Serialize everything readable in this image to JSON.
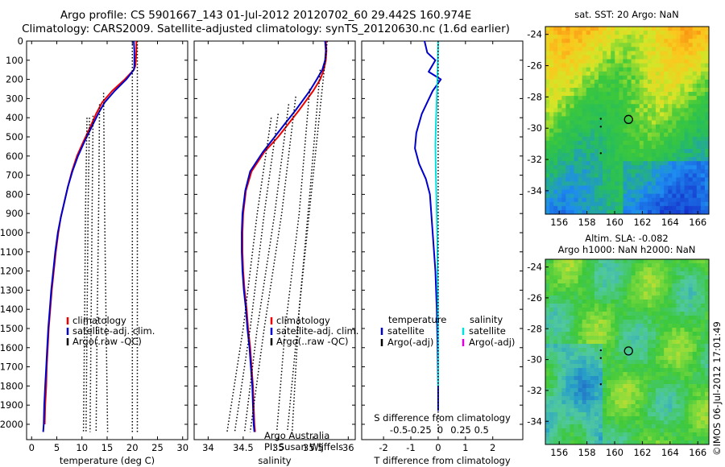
{
  "header": {
    "title_line1": "Argo profile: CS 5901667_143 01-Jul-2012 20120702_60 29.442S 160.974E",
    "title_line2": "Climatology: CARS2009. Satellite-adjusted climatology: synTS_20120630.nc (1.6d earlier)"
  },
  "colors": {
    "climatology": "#ee0000",
    "satellite": "#0000cc",
    "argo": "#000000",
    "salinity_satellite": "#00e0e0",
    "salinity_argo": "#dd00dd"
  },
  "chart_data": [
    {
      "type": "line",
      "name": "temperature-profile",
      "xlabel": "temperature (deg C)",
      "xlim": [
        -1,
        31
      ],
      "ylim": [
        2080,
        0
      ],
      "xticks": [
        "0",
        "5",
        "10",
        "15",
        "20",
        "25",
        "30"
      ],
      "xtick_values": [
        0,
        5,
        10,
        15,
        20,
        25,
        30
      ],
      "yticks": [
        "0",
        "100",
        "200",
        "300",
        "400",
        "500",
        "600",
        "700",
        "800",
        "900",
        "1000",
        "1100",
        "1200",
        "1300",
        "1400",
        "1500",
        "1600",
        "1700",
        "1800",
        "1900",
        "2000"
      ],
      "ytick_values": [
        0,
        100,
        200,
        300,
        400,
        500,
        600,
        700,
        800,
        900,
        1000,
        1100,
        1200,
        1300,
        1400,
        1500,
        1600,
        1700,
        1800,
        1900,
        2000
      ],
      "legend": [
        "climatology",
        "satellite-adj. clim.",
        "Argo(.raw -QC)"
      ],
      "series": [
        {
          "name": "climatology",
          "color": "#ee0000",
          "x": [
            20.8,
            20.8,
            20.7,
            20.6,
            20.3,
            18.5,
            16.0,
            14.0,
            12.8,
            11.6,
            10.2,
            9.0,
            8.0,
            7.2,
            6.5,
            5.8,
            5.3,
            4.8,
            4.4,
            4.0,
            3.7,
            3.4,
            3.2,
            3.0,
            2.9,
            2.7,
            2.6
          ],
          "y": [
            0,
            50,
            100,
            130,
            150,
            200,
            260,
            320,
            380,
            450,
            530,
            600,
            680,
            760,
            840,
            920,
            1000,
            1100,
            1200,
            1300,
            1400,
            1500,
            1600,
            1700,
            1800,
            1900,
            2000
          ]
        },
        {
          "name": "satellite-adj. clim.",
          "color": "#0000cc",
          "x": [
            20.3,
            20.4,
            20.4,
            20.4,
            20.3,
            18.8,
            16.5,
            14.5,
            13.2,
            11.9,
            10.4,
            9.2,
            8.1,
            7.2,
            6.5,
            5.8,
            5.2,
            4.7,
            4.3,
            3.9,
            3.6,
            3.3,
            3.1,
            2.9,
            2.7,
            2.5,
            2.4,
            2.3
          ],
          "y": [
            0,
            50,
            100,
            130,
            150,
            200,
            260,
            320,
            380,
            450,
            530,
            600,
            680,
            760,
            840,
            920,
            1000,
            1100,
            1200,
            1300,
            1400,
            1500,
            1600,
            1700,
            1800,
            1900,
            2000,
            2040
          ]
        },
        {
          "name": "Argo(.raw -QC)",
          "color": "#000000",
          "dashed": true,
          "segments": [
            {
              "x": [
                11.0,
                10.7,
                10.5,
                10.3
              ],
              "y": [
                400,
                900,
                1500,
                2040
              ]
            },
            {
              "x": [
                11.5,
                11.2,
                11.0,
                10.8
              ],
              "y": [
                400,
                900,
                1500,
                2040
              ]
            },
            {
              "x": [
                12.2,
                12.0,
                11.8,
                11.6
              ],
              "y": [
                390,
                900,
                1500,
                2040
              ]
            },
            {
              "x": [
                13.5,
                13.3,
                13.0,
                12.8
              ],
              "y": [
                330,
                900,
                1500,
                2040
              ]
            },
            {
              "x": [
                14.3,
                14.5,
                14.8,
                15.1
              ],
              "y": [
                270,
                900,
                1500,
                2040
              ]
            },
            {
              "x": [
                20.0,
                20.0,
                20.0,
                20.0
              ],
              "y": [
                0,
                700,
                1400,
                2040
              ]
            },
            {
              "x": [
                21.0,
                21.0,
                21.0,
                21.0
              ],
              "y": [
                0,
                700,
                1400,
                2040
              ]
            }
          ]
        }
      ]
    },
    {
      "type": "line",
      "name": "salinity-profile",
      "xlabel": "salinity",
      "xlim": [
        33.8,
        36.1
      ],
      "ylim": [
        2080,
        0
      ],
      "xticks": [
        "34",
        "34.5",
        "35",
        "35.5",
        "36"
      ],
      "xtick_values": [
        34,
        34.5,
        35,
        35.5,
        36
      ],
      "legend": [
        "climatology",
        "satellite-adj. clim.",
        "Argo(..raw -QC)"
      ],
      "annotations": [
        "Argo Australia",
        "PI: Susan Wijffels"
      ],
      "series": [
        {
          "name": "climatology",
          "color": "#ee0000",
          "x": [
            35.68,
            35.69,
            35.68,
            35.65,
            35.6,
            35.5,
            35.3,
            35.15,
            35.0,
            34.8,
            34.62,
            34.54,
            34.5,
            34.49,
            34.49,
            34.5,
            34.52,
            34.55,
            34.57,
            34.6,
            34.62,
            34.64,
            34.65,
            34.66,
            34.67
          ],
          "y": [
            0,
            50,
            100,
            150,
            200,
            260,
            360,
            430,
            500,
            580,
            680,
            780,
            900,
            1000,
            1100,
            1200,
            1300,
            1400,
            1500,
            1600,
            1700,
            1800,
            1900,
            2000,
            2040
          ]
        },
        {
          "name": "satellite-adj. clim.",
          "color": "#0000cc",
          "x": [
            35.67,
            35.68,
            35.67,
            35.63,
            35.55,
            35.45,
            35.25,
            35.1,
            34.95,
            34.78,
            34.6,
            34.53,
            34.49,
            34.48,
            34.48,
            34.49,
            34.51,
            34.54,
            34.56,
            34.59,
            34.61,
            34.63,
            34.64,
            34.65,
            34.66
          ],
          "y": [
            0,
            50,
            100,
            150,
            200,
            260,
            360,
            430,
            500,
            580,
            680,
            780,
            900,
            1000,
            1100,
            1200,
            1300,
            1400,
            1500,
            1600,
            1700,
            1800,
            1900,
            2000,
            2040
          ]
        },
        {
          "name": "Argo(..raw -QC)",
          "color": "#000000",
          "dashed": true,
          "segments": [
            {
              "x": [
                34.9,
                34.7,
                34.5,
                34.27
              ],
              "y": [
                400,
                900,
                1500,
                2040
              ]
            },
            {
              "x": [
                35.0,
                34.8,
                34.6,
                34.38
              ],
              "y": [
                380,
                900,
                1500,
                2040
              ]
            },
            {
              "x": [
                35.15,
                34.95,
                34.7,
                34.52
              ],
              "y": [
                330,
                900,
                1500,
                2040
              ]
            },
            {
              "x": [
                35.25,
                35.05,
                34.8,
                34.6
              ],
              "y": [
                290,
                900,
                1500,
                2040
              ]
            },
            {
              "x": [
                35.45,
                35.3,
                35.1,
                34.98
              ],
              "y": [
                250,
                900,
                1500,
                2040
              ]
            },
            {
              "x": [
                35.7,
                35.5,
                35.3,
                35.13
              ],
              "y": [
                0,
                700,
                1400,
                2040
              ]
            },
            {
              "x": [
                35.6,
                35.45,
                35.3,
                35.2
              ],
              "y": [
                150,
                800,
                1400,
                2040
              ]
            }
          ]
        }
      ]
    },
    {
      "type": "line",
      "name": "difference-profile",
      "xlabel": "T difference from climatology",
      "xlabel2": "S difference from climatology",
      "xlim": [
        -2.8,
        3.1
      ],
      "ylim": [
        2080,
        0
      ],
      "xticks": [
        "-2",
        "-1",
        "0",
        "1",
        "2"
      ],
      "xtick_values": [
        -2,
        -1,
        0,
        1,
        2
      ],
      "xticks2": [
        "-0.5",
        "-0.25",
        "0",
        "0.25",
        "0.5"
      ],
      "xtick2_values": [
        -0.5,
        -0.25,
        0,
        0.25,
        0.5
      ],
      "legend_temperature": [
        "temperature",
        "satellite",
        "Argo(-adj)"
      ],
      "legend_salinity": [
        "salinity",
        "satellite",
        "Argo(-adj)"
      ],
      "series": [
        {
          "name": "T satellite",
          "color": "#0000cc",
          "x": [
            -0.5,
            -0.4,
            -0.1,
            -0.35,
            0.1,
            -0.2,
            -0.6,
            -0.8,
            -0.85,
            -0.7,
            -0.45,
            -0.3,
            -0.25,
            -0.2,
            -0.1,
            -0.05,
            -0.02,
            0.0,
            0.0
          ],
          "y": [
            0,
            60,
            100,
            160,
            200,
            260,
            380,
            480,
            560,
            640,
            720,
            800,
            900,
            1000,
            1200,
            1400,
            1600,
            1800,
            1930
          ]
        },
        {
          "name": "S satellite",
          "color": "#00e0e0",
          "x": [
            0.0,
            -0.02,
            -0.05,
            -0.08,
            -0.1,
            -0.09,
            -0.07,
            -0.05,
            -0.03,
            -0.02,
            -0.01,
            0.0,
            0.0
          ],
          "y": [
            0,
            160,
            300,
            420,
            540,
            660,
            780,
            900,
            1050,
            1200,
            1400,
            1600,
            1800
          ]
        },
        {
          "name": "zero-line",
          "color": "#000000",
          "dashed": true,
          "x": [
            0,
            0
          ],
          "y": [
            0,
            2040
          ]
        }
      ]
    },
    {
      "type": "heatmap",
      "name": "sst-map",
      "title": "sat. SST: 20 Argo: NaN",
      "xlim": [
        155,
        166.8
      ],
      "ylim": [
        -35.5,
        -23.5
      ],
      "xticks": [
        "156",
        "158",
        "160",
        "162",
        "164",
        "166"
      ],
      "xtick_values": [
        156,
        158,
        160,
        162,
        164,
        166
      ],
      "yticks": [
        "-24",
        "-26",
        "-28",
        "-30",
        "-32",
        "-34"
      ],
      "ytick_values": [
        -24,
        -26,
        -28,
        -30,
        -32,
        -34
      ],
      "marker": [
        161.0,
        -29.44
      ]
    },
    {
      "type": "heatmap",
      "name": "sla-map",
      "title": "Altim. SLA: -0.082",
      "subtitle": "Argo h1000: NaN h2000: NaN",
      "xlim": [
        155,
        166.8
      ],
      "ylim": [
        -35.5,
        -23.5
      ],
      "xticks": [
        "156",
        "158",
        "160",
        "162",
        "164",
        "166"
      ],
      "xtick_values": [
        156,
        158,
        160,
        162,
        164,
        166
      ],
      "yticks": [
        "-24",
        "-26",
        "-28",
        "-30",
        "-32",
        "-34"
      ],
      "ytick_values": [
        -24,
        -26,
        -28,
        -30,
        -32,
        -34
      ],
      "marker": [
        161.0,
        -29.44
      ]
    }
  ],
  "stamp": "©IMOS 06-Jul-2012 17:01:49"
}
